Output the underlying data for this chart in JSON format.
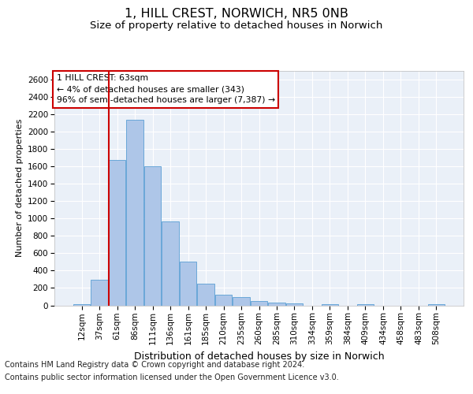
{
  "title": "1, HILL CREST, NORWICH, NR5 0NB",
  "subtitle": "Size of property relative to detached houses in Norwich",
  "xlabel": "Distribution of detached houses by size in Norwich",
  "ylabel": "Number of detached properties",
  "categories": [
    "12sqm",
    "37sqm",
    "61sqm",
    "86sqm",
    "111sqm",
    "136sqm",
    "161sqm",
    "185sqm",
    "210sqm",
    "235sqm",
    "260sqm",
    "285sqm",
    "310sqm",
    "334sqm",
    "359sqm",
    "384sqm",
    "409sqm",
    "434sqm",
    "458sqm",
    "483sqm",
    "508sqm"
  ],
  "values": [
    18,
    295,
    1670,
    2140,
    1600,
    970,
    505,
    250,
    120,
    95,
    50,
    35,
    22,
    0,
    18,
    0,
    18,
    0,
    0,
    0,
    18
  ],
  "bar_color": "#aec6e8",
  "bar_edge_color": "#5a9fd4",
  "bg_color": "#eaf0f8",
  "grid_color": "#ffffff",
  "annotation_line_color": "#cc0000",
  "annotation_box_text": "1 HILL CREST: 63sqm\n← 4% of detached houses are smaller (343)\n96% of semi-detached houses are larger (7,387) →",
  "annotation_box_color": "#cc0000",
  "footer_line1": "Contains HM Land Registry data © Crown copyright and database right 2024.",
  "footer_line2": "Contains public sector information licensed under the Open Government Licence v3.0.",
  "ylim": [
    0,
    2700
  ],
  "yticks": [
    0,
    200,
    400,
    600,
    800,
    1000,
    1200,
    1400,
    1600,
    1800,
    2000,
    2200,
    2400,
    2600
  ],
  "red_line_bar_index": 2,
  "title_fontsize": 11.5,
  "subtitle_fontsize": 9.5,
  "xlabel_fontsize": 9,
  "ylabel_fontsize": 8,
  "tick_fontsize": 7.5,
  "footer_fontsize": 7
}
